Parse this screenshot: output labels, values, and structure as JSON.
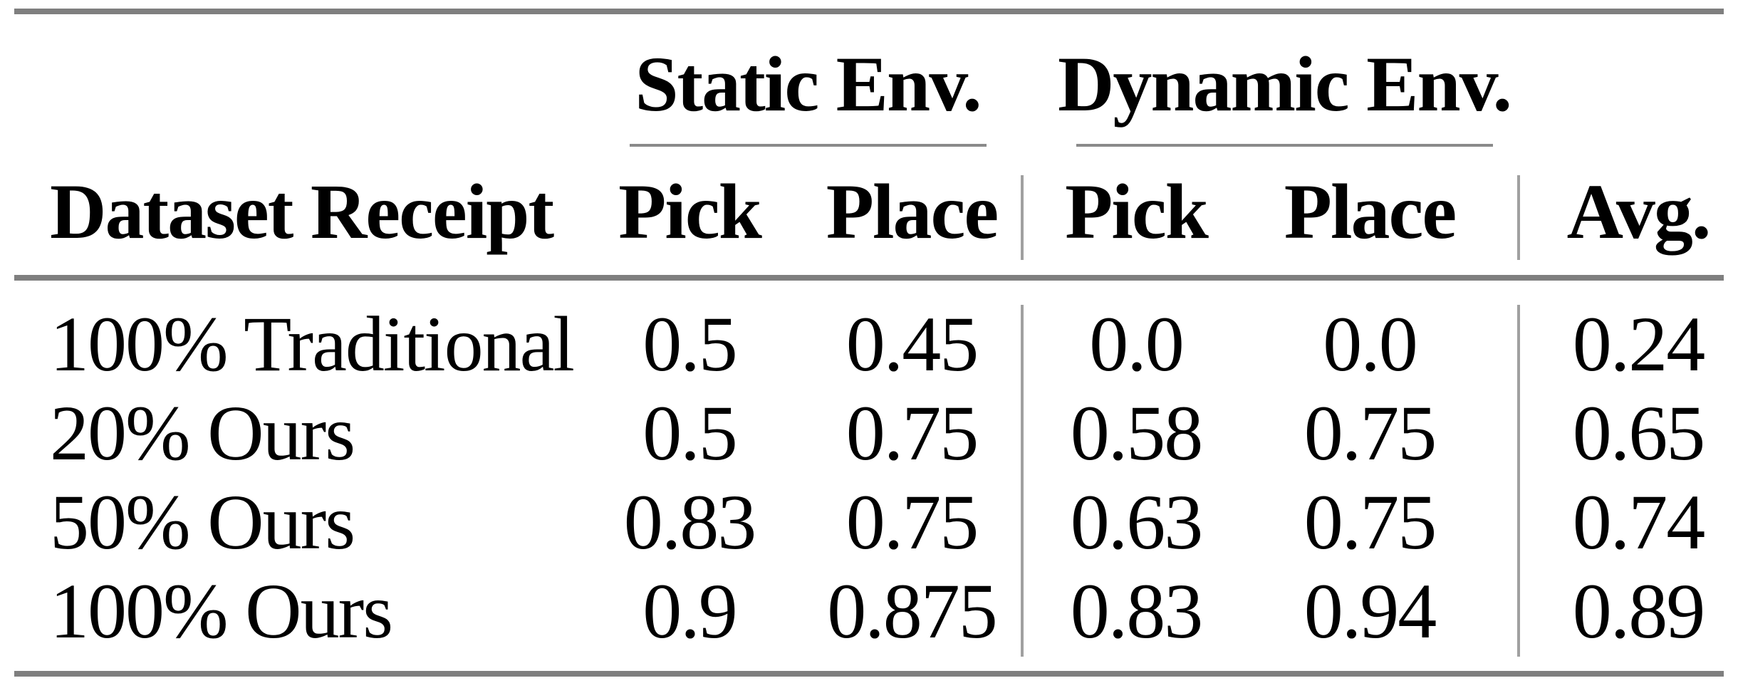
{
  "figure": {
    "colors": {
      "background": "#ffffff",
      "text": "#000000",
      "rule_heavy": "#7f7f7f",
      "rule_light": "#8a8a8a",
      "divider": "#a0a0a0"
    }
  },
  "table": {
    "groups": {
      "static": "Static Env.",
      "dynamic": "Dynamic Env."
    },
    "header": {
      "dataset": "Dataset Receipt",
      "static_pick": "Pick",
      "static_place": "Place",
      "dynamic_pick": "Pick",
      "dynamic_place": "Place",
      "avg": "Avg."
    },
    "rows": [
      {
        "label": "100% Traditional",
        "static_pick": "0.5",
        "static_place": "0.45",
        "dynamic_pick": "0.0",
        "dynamic_place": "0.0",
        "avg": "0.24"
      },
      {
        "label": "20% Ours",
        "static_pick": "0.5",
        "static_place": "0.75",
        "dynamic_pick": "0.58",
        "dynamic_place": "0.75",
        "avg": "0.65"
      },
      {
        "label": "50% Ours",
        "static_pick": "0.83",
        "static_place": "0.75",
        "dynamic_pick": "0.63",
        "dynamic_place": "0.75",
        "avg": "0.74"
      },
      {
        "label": "100% Ours",
        "static_pick": "0.9",
        "static_place": "0.875",
        "dynamic_pick": "0.83",
        "dynamic_place": "0.94",
        "avg": "0.89"
      }
    ]
  }
}
